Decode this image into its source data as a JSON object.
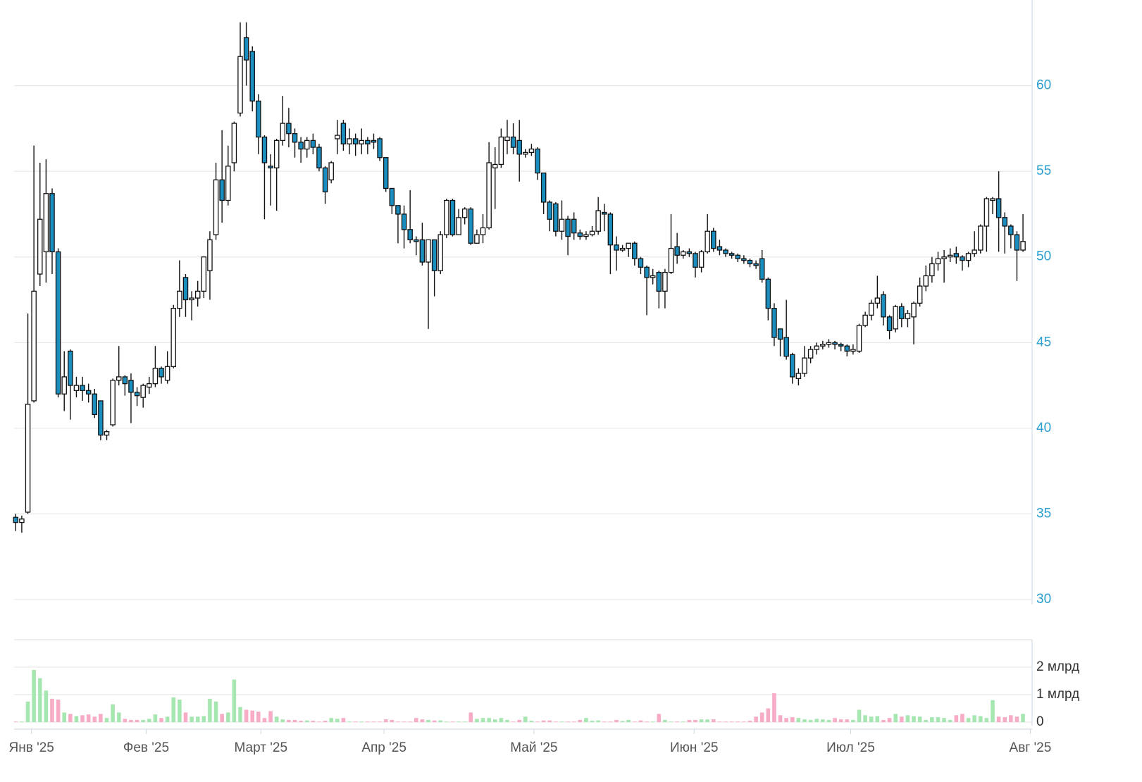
{
  "chart_data": {
    "type": "candlestick",
    "open": [
      34.8,
      34.5,
      35.1,
      41.6,
      49.0,
      50.3,
      53.7,
      50.3,
      42.0,
      44.5,
      42.2,
      42.5,
      42.2,
      42.0,
      41.6,
      39.6,
      40.2,
      42.8,
      43.0,
      42.8,
      42.1,
      41.8,
      42.4,
      42.6,
      43.5,
      42.8,
      43.6,
      47.0,
      48.8,
      47.5,
      47.6,
      48.0,
      49.2,
      51.3,
      54.5,
      53.3,
      55.5,
      58.4,
      62.8,
      62.0,
      59.1,
      57.0,
      55.3,
      55.2,
      56.8,
      57.8,
      57.2,
      56.7,
      56.3,
      56.8,
      56.4,
      55.2,
      54.5,
      56.9,
      57.8,
      56.6,
      56.9,
      56.6,
      56.8,
      56.8,
      56.9,
      55.8,
      54.0,
      53.0,
      52.5,
      51.6,
      51.0,
      51.0,
      49.7,
      51.0,
      49.2,
      51.3,
      53.3,
      51.3,
      52.3,
      52.8,
      50.8,
      51.3,
      51.7,
      55.2,
      55.4,
      56.8,
      57.0,
      56.8,
      56.0,
      56.1,
      56.3,
      54.9,
      53.2,
      53.1,
      51.5,
      52.2,
      52.2,
      51.4,
      51.2,
      51.3,
      51.5,
      52.6,
      52.5,
      50.7,
      50.4,
      50.5,
      50.8,
      49.9,
      49.4,
      48.8,
      49.1,
      48.0,
      49.1,
      50.6,
      50.1,
      50.3,
      50.2,
      49.4,
      50.3,
      51.5,
      50.6,
      50.4,
      50.2,
      50.1,
      49.9,
      49.8,
      49.6,
      49.9,
      48.7,
      47.0,
      45.8,
      45.3,
      44.3,
      42.9,
      43.2,
      44.1,
      44.6,
      44.8,
      44.9,
      45.0,
      44.9,
      44.8,
      44.5,
      44.5,
      46.0,
      46.6,
      47.3,
      47.8,
      46.5,
      45.8,
      47.1,
      46.4,
      46.5,
      47.3,
      48.3,
      48.9,
      49.6,
      49.9,
      50.0,
      50.2,
      50.0,
      49.8,
      50.2,
      50.4,
      51.8,
      53.3,
      53.4,
      52.3,
      51.8,
      51.3,
      50.4
    ],
    "high": [
      35.0,
      34.9,
      46.7,
      56.5,
      55.5,
      55.7,
      54.0,
      50.5,
      44.5,
      44.6,
      43.0,
      43.0,
      42.6,
      42.3,
      41.6,
      39.9,
      42.9,
      44.8,
      43.1,
      43.2,
      42.4,
      42.6,
      43.0,
      44.8,
      43.6,
      44.5,
      47.2,
      49.8,
      49.0,
      48.0,
      48.6,
      50.0,
      51.5,
      55.5,
      57.4,
      56.5,
      57.9,
      63.7,
      63.7,
      62.3,
      59.5,
      57.1,
      56.0,
      56.9,
      59.4,
      58.7,
      57.5,
      57.0,
      57.0,
      57.2,
      56.6,
      55.3,
      55.6,
      58.0,
      58.0,
      57.5,
      57.2,
      57.5,
      57.0,
      57.2,
      57.0,
      55.8,
      54.0,
      53.0,
      53.0,
      53.9,
      51.2,
      52.0,
      51.0,
      51.0,
      51.5,
      53.4,
      53.4,
      52.8,
      52.9,
      52.9,
      51.6,
      52.5,
      56.7,
      56.4,
      57.5,
      58.0,
      57.8,
      58.0,
      56.3,
      56.6,
      56.4,
      54.9,
      53.3,
      53.2,
      53.3,
      52.4,
      52.6,
      51.6,
      51.5,
      51.8,
      53.5,
      53.1,
      52.6,
      51.2,
      50.7,
      50.8,
      50.9,
      50.0,
      49.5,
      49.3,
      49.2,
      49.3,
      52.5,
      51.4,
      50.4,
      50.5,
      50.3,
      50.4,
      52.5,
      51.7,
      51.0,
      50.5,
      50.3,
      50.2,
      50.1,
      49.9,
      49.8,
      50.4,
      48.8,
      47.3,
      45.8,
      47.5,
      44.4,
      43.5,
      44.8,
      44.8,
      45.0,
      45.1,
      45.2,
      45.1,
      45.0,
      44.9,
      44.9,
      46.1,
      46.8,
      47.5,
      48.9,
      48.0,
      46.6,
      47.2,
      47.3,
      46.9,
      47.4,
      48.8,
      49.5,
      50.0,
      50.3,
      50.4,
      50.5,
      50.6,
      50.1,
      50.3,
      51.5,
      51.9,
      53.5,
      53.5,
      55.0,
      52.6,
      51.9,
      51.5,
      52.5
    ],
    "low": [
      34.0,
      33.9,
      35.0,
      41.5,
      48.3,
      48.5,
      49.0,
      41.8,
      41.0,
      40.5,
      41.8,
      41.6,
      41.5,
      40.6,
      39.3,
      39.3,
      40.1,
      42.5,
      41.9,
      40.3,
      41.3,
      41.2,
      42.0,
      42.4,
      42.6,
      42.6,
      43.5,
      46.5,
      46.5,
      46.3,
      47.1,
      47.6,
      47.5,
      51.0,
      52.0,
      53.0,
      55.0,
      58.2,
      60.0,
      58.5,
      56.0,
      52.2,
      53.0,
      52.7,
      56.5,
      56.4,
      55.8,
      55.5,
      55.8,
      56.0,
      55.0,
      53.1,
      54.3,
      56.0,
      56.2,
      56.0,
      55.9,
      56.0,
      56.0,
      56.3,
      55.6,
      53.8,
      52.5,
      50.8,
      50.5,
      50.8,
      50.1,
      49.5,
      45.8,
      47.7,
      49.0,
      51.1,
      51.2,
      51.3,
      51.9,
      50.7,
      50.8,
      50.8,
      51.6,
      52.8,
      55.2,
      56.0,
      56.0,
      54.4,
      55.8,
      55.9,
      54.5,
      52.5,
      51.5,
      51.2,
      51.0,
      50.1,
      51.0,
      51.0,
      51.0,
      51.2,
      51.3,
      51.5,
      49.0,
      49.2,
      50.3,
      50.0,
      49.5,
      49.0,
      46.6,
      48.4,
      47.0,
      47.0,
      49.0,
      49.6,
      49.9,
      50.0,
      48.8,
      49.1,
      50.2,
      50.3,
      50.1,
      50.0,
      49.9,
      49.7,
      49.6,
      49.4,
      49.3,
      48.5,
      46.3,
      44.8,
      44.2,
      44.0,
      42.6,
      42.5,
      43.0,
      43.8,
      44.3,
      44.6,
      44.7,
      44.6,
      44.5,
      44.2,
      44.3,
      44.4,
      45.9,
      46.3,
      47.0,
      46.0,
      45.2,
      45.6,
      45.9,
      45.9,
      44.9,
      47.1,
      48.0,
      48.5,
      49.2,
      48.5,
      49.7,
      49.6,
      49.2,
      49.4,
      50.0,
      50.2,
      50.3,
      52.5,
      50.3,
      50.2,
      50.5,
      48.6,
      50.3
    ],
    "close": [
      34.5,
      34.7,
      41.4,
      48.0,
      52.2,
      53.7,
      50.3,
      42.0,
      43.0,
      42.5,
      42.5,
      42.2,
      42.0,
      40.8,
      39.6,
      39.8,
      42.8,
      43.0,
      42.6,
      42.1,
      41.9,
      42.5,
      42.6,
      43.5,
      43.0,
      43.6,
      47.0,
      48.0,
      47.5,
      47.6,
      48.0,
      50.0,
      51.0,
      54.5,
      53.3,
      55.3,
      57.8,
      61.7,
      61.5,
      59.1,
      57.0,
      55.5,
      55.2,
      56.8,
      57.8,
      57.2,
      56.7,
      56.3,
      56.8,
      56.4,
      55.2,
      53.8,
      55.5,
      57.1,
      56.6,
      56.9,
      56.6,
      56.8,
      56.6,
      56.7,
      55.8,
      54.0,
      53.0,
      52.5,
      51.6,
      51.0,
      50.9,
      49.7,
      51.0,
      49.2,
      51.3,
      53.3,
      51.3,
      52.3,
      52.8,
      50.8,
      51.3,
      51.7,
      55.5,
      55.4,
      57.0,
      57.0,
      56.4,
      56.0,
      56.1,
      56.3,
      54.9,
      53.2,
      52.2,
      51.5,
      52.2,
      51.2,
      51.4,
      51.2,
      51.3,
      51.5,
      52.7,
      52.5,
      50.7,
      50.4,
      50.5,
      50.8,
      49.9,
      49.4,
      48.8,
      48.9,
      48.0,
      49.1,
      50.5,
      50.1,
      50.3,
      50.2,
      49.4,
      50.3,
      51.5,
      50.5,
      50.4,
      50.2,
      50.1,
      49.9,
      49.8,
      49.6,
      49.5,
      48.7,
      47.0,
      45.3,
      45.2,
      44.2,
      43.0,
      43.2,
      44.1,
      44.6,
      44.8,
      44.9,
      45.0,
      44.9,
      44.8,
      44.5,
      44.6,
      46.0,
      46.6,
      47.3,
      47.6,
      46.5,
      45.7,
      47.1,
      46.4,
      46.7,
      47.3,
      48.3,
      48.9,
      49.6,
      49.9,
      50.0,
      50.1,
      50.0,
      49.8,
      50.2,
      50.4,
      51.8,
      53.4,
      53.4,
      52.3,
      51.8,
      51.3,
      50.4,
      50.9
    ],
    "up_color": "#ffffff",
    "down_color": "#1b8ec0",
    "xlim": [
      -0.5,
      167.5
    ],
    "xticks": [
      {
        "value": 2.6,
        "label": "Янв '25"
      },
      {
        "value": 21.5,
        "label": "Фев '25"
      },
      {
        "value": 40.4,
        "label": "Март '25"
      },
      {
        "value": 60.7,
        "label": "Апр '25"
      },
      {
        "value": 85.4,
        "label": "Май '25"
      },
      {
        "value": 111.8,
        "label": "Июн '25"
      },
      {
        "value": 137.6,
        "label": "Июл '25"
      },
      {
        "value": 167.2,
        "label": "Авг '25"
      }
    ],
    "ylim": [
      30,
      65
    ],
    "yticks": [
      30,
      35,
      40,
      45,
      50,
      55,
      60
    ],
    "grid": true,
    "volume": {
      "type": "bar",
      "values": [
        0.02,
        0.02,
        0.75,
        1.9,
        1.6,
        1.15,
        0.85,
        0.82,
        0.35,
        0.3,
        0.22,
        0.25,
        0.28,
        0.2,
        0.3,
        0.15,
        0.65,
        0.35,
        0.12,
        0.08,
        0.08,
        0.08,
        0.12,
        0.28,
        0.15,
        0.2,
        0.9,
        0.82,
        0.35,
        0.2,
        0.2,
        0.22,
        0.85,
        0.75,
        0.3,
        0.35,
        1.55,
        0.55,
        0.45,
        0.42,
        0.38,
        0.15,
        0.4,
        0.2,
        0.1,
        0.08,
        0.08,
        0.05,
        0.06,
        0.05,
        0.02,
        0.05,
        0.15,
        0.12,
        0.15,
        0.02,
        0.02,
        0.02,
        0.02,
        0.02,
        0.02,
        0.1,
        0.08,
        0.02,
        0.02,
        0.02,
        0.15,
        0.1,
        0.08,
        0.06,
        0.06,
        0.02,
        0.02,
        0.02,
        0.02,
        0.35,
        0.12,
        0.15,
        0.15,
        0.1,
        0.15,
        0.08,
        0.02,
        0.08,
        0.2,
        0.05,
        0.02,
        0.06,
        0.06,
        0.02,
        0.02,
        0.02,
        0.02,
        0.08,
        0.15,
        0.05,
        0.06,
        0.02,
        0.02,
        0.08,
        0.04,
        0.08,
        0.02,
        0.06,
        0.02,
        0.02,
        0.3,
        0.08,
        0.02,
        0.02,
        0.02,
        0.08,
        0.08,
        0.1,
        0.1,
        0.1,
        0.02,
        0.02,
        0.02,
        0.02,
        0.02,
        0.05,
        0.2,
        0.35,
        0.5,
        1.05,
        0.25,
        0.15,
        0.18,
        0.15,
        0.1,
        0.08,
        0.12,
        0.1,
        0.08,
        0.15,
        0.1,
        0.1,
        0.08,
        0.45,
        0.25,
        0.2,
        0.22,
        0.08,
        0.15,
        0.3,
        0.2,
        0.25,
        0.22,
        0.2,
        0.08,
        0.18,
        0.18,
        0.15,
        0.08,
        0.25,
        0.3,
        0.15,
        0.25,
        0.22,
        0.15,
        0.8,
        0.2,
        0.18,
        0.25,
        0.2,
        0.3
      ],
      "up_color": "#a6e6b1",
      "down_color": "#f8abc7",
      "ylim": [
        0,
        3
      ],
      "yticks": [
        0,
        {
          "value": 1,
          "label": "1 млрд"
        },
        {
          "value": 2,
          "label": "2 млрд"
        }
      ]
    }
  }
}
